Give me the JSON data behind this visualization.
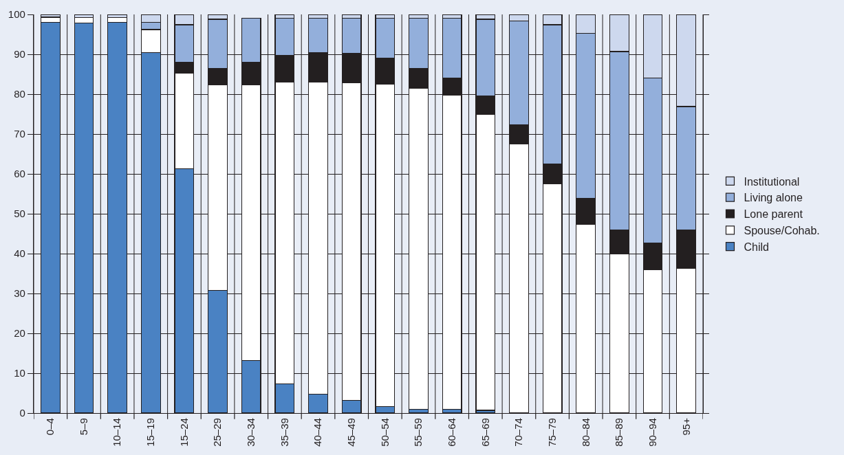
{
  "chart_data": {
    "type": "bar",
    "stacked": true,
    "categories": [
      "0–4",
      "5–9",
      "10–14",
      "15–19",
      "15–24",
      "25–29",
      "30–34",
      "35–39",
      "40–44",
      "45–49",
      "50–54",
      "55–59",
      "60–64",
      "65–69",
      "70–74",
      "75–79",
      "80–84",
      "85–89",
      "90–94",
      "95+"
    ],
    "series": [
      {
        "name": "Child",
        "color": "#4a82c3",
        "values": [
          98,
          97.8,
          98,
          90.5,
          61.3,
          30.8,
          13.2,
          7.3,
          4.7,
          3.2,
          1.7,
          1,
          1,
          0.7,
          null,
          null,
          null,
          null,
          null,
          null
        ]
      },
      {
        "name": "Spouse/Cohab.",
        "color": "#ffffff",
        "values": [
          1.3,
          1.4,
          1.2,
          5.7,
          24,
          51.5,
          69.2,
          75.7,
          78.4,
          79.7,
          80.8,
          80.5,
          78.7,
          74.3,
          67.6,
          57.5,
          47.4,
          40,
          35.9,
          36.3
        ]
      },
      {
        "name": "Lone parent",
        "color": "#231f20",
        "values": [
          null,
          null,
          null,
          null,
          2.7,
          4.1,
          5.6,
          6.7,
          7.4,
          7.3,
          6.6,
          5,
          4.4,
          4.6,
          4.7,
          5,
          6.4,
          5.9,
          6.7,
          9.7
        ]
      },
      {
        "name": "Living alone",
        "color": "#93afdb",
        "values": [
          null,
          null,
          null,
          1.8,
          9.4,
          12.4,
          11.1,
          9.3,
          8.5,
          8.9,
          10,
          12.5,
          15,
          19.2,
          26,
          34.9,
          41.4,
          44.8,
          41.5,
          30.9
        ]
      },
      {
        "name": "Institutional",
        "color": "#cdd8ee",
        "values": [
          0.7,
          0.8,
          0.8,
          2,
          2.6,
          1.2,
          null,
          1,
          1,
          0.9,
          0.9,
          1,
          0.9,
          1.2,
          1.7,
          2.6,
          4.8,
          9.3,
          15.9,
          23.1
        ]
      }
    ],
    "ylim": [
      0,
      100
    ],
    "yticks": [
      0,
      10,
      20,
      30,
      40,
      50,
      60,
      70,
      80,
      90,
      100
    ],
    "grid": true,
    "legend": "right"
  }
}
